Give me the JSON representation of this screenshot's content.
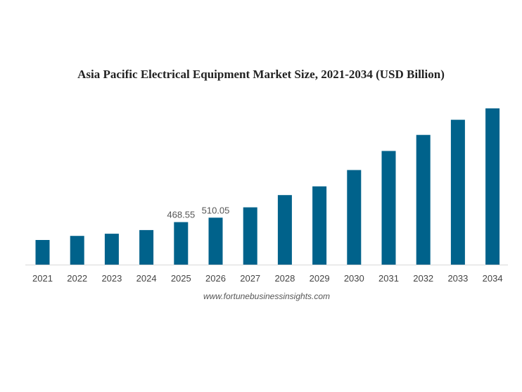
{
  "chart_data": {
    "type": "bar",
    "title": "Asia Pacific Electrical Equipment Market Size, 2021-2034 (USD Billion)",
    "source": "www.fortunebusinessinsights.com",
    "categories": [
      "2021",
      "2022",
      "2023",
      "2024",
      "2025",
      "2026",
      "2027",
      "2028",
      "2029",
      "2030",
      "2031",
      "2032",
      "2033",
      "2034"
    ],
    "values": [
      301,
      339,
      360,
      394,
      468.55,
      510.05,
      607,
      722,
      804,
      957,
      1136,
      1286,
      1428,
      1535
    ],
    "data_labels": {
      "4": "468.55",
      "5": "510.05"
    },
    "ylim": [
      70,
      1535
    ],
    "bar_color": "#00628b",
    "grid": false
  }
}
